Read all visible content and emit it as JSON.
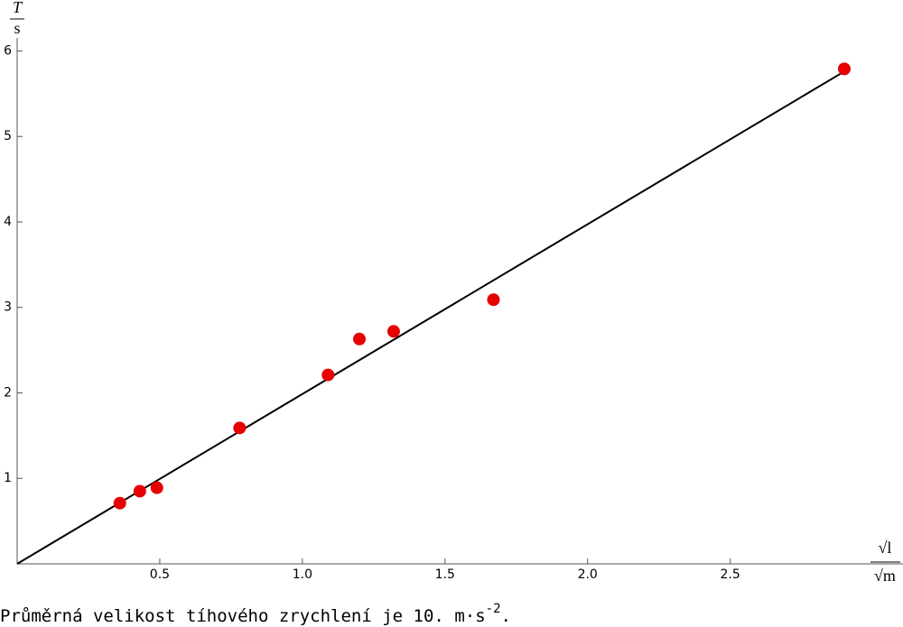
{
  "chart_data": {
    "type": "scatter",
    "x_label": {
      "numerator": "√l",
      "denominator": "√m"
    },
    "y_label": {
      "numerator": "T",
      "denominator": "s"
    },
    "series": [
      {
        "color": "#e60000",
        "x": [
          0.36,
          0.43,
          0.49,
          0.78,
          1.09,
          1.2,
          1.32,
          1.67,
          2.9
        ],
        "values": [
          0.71,
          0.85,
          0.89,
          1.59,
          2.21,
          2.63,
          2.72,
          3.09,
          5.79
        ]
      }
    ],
    "fit_line": {
      "color": "#000000",
      "x": [
        0,
        2.92
      ],
      "values": [
        0,
        5.8
      ]
    },
    "xlim": [
      0,
      3.09
    ],
    "ylim": [
      0,
      6.1
    ],
    "xticks": [
      0.5,
      {
        "value": 1,
        "label": "1.0"
      },
      1.5,
      {
        "value": 2,
        "label": "2.0"
      },
      2.5
    ],
    "yticks": [
      1,
      2,
      3,
      4,
      5,
      6
    ],
    "grid": false
  },
  "caption": {
    "text": "Průměrná velikost tíhového zrychlení je 10. m·s",
    "superscript": "-2",
    "end": "."
  }
}
